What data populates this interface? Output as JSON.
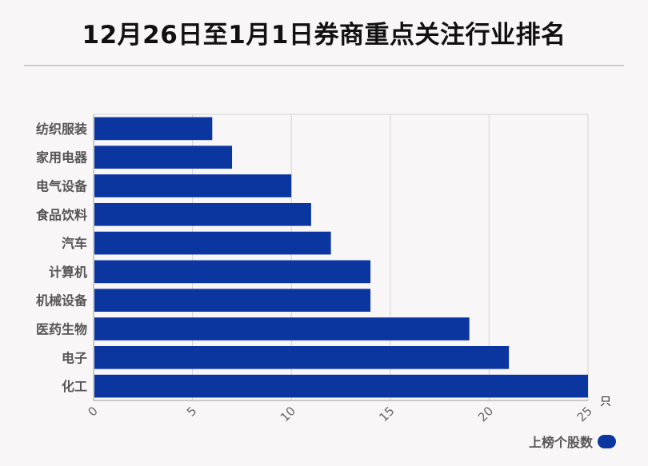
{
  "title": "12月26日至1月1日券商重点关注行业排名",
  "colors": {
    "bar": "#0b36a0",
    "grid": "#d4d4d4",
    "axis": "#9a9a9a"
  },
  "chart_data": {
    "type": "bar",
    "orientation": "horizontal",
    "categories": [
      "纺织服装",
      "家用电器",
      "电气设备",
      "食品饮料",
      "汽车",
      "计算机",
      "机械设备",
      "医药生物",
      "电子",
      "化工"
    ],
    "series": [
      {
        "name": "上榜个股数",
        "values": [
          6,
          7,
          10,
          11,
          12,
          14,
          14,
          19,
          21,
          25
        ]
      }
    ],
    "xlim": [
      0,
      25
    ],
    "xticks": [
      0,
      5,
      10,
      15,
      20,
      25
    ],
    "xunit": "只",
    "grid": true,
    "legend_position": "bottom-right"
  }
}
